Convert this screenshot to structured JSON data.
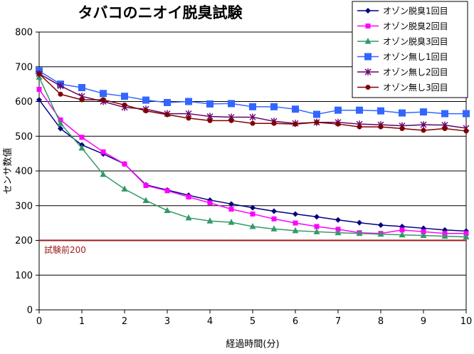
{
  "chart_data": {
    "type": "line",
    "title": "タバコのニオイ脱臭試験",
    "xlabel": "経過時間(分)",
    "ylabel": "センサ数値",
    "xlim": [
      0,
      10
    ],
    "ylim": [
      0,
      800
    ],
    "x_ticks": [
      0,
      1,
      2,
      3,
      4,
      5,
      6,
      7,
      8,
      9,
      10
    ],
    "y_ticks": [
      0,
      100,
      200,
      300,
      400,
      500,
      600,
      700,
      800
    ],
    "grid": "horizontal",
    "legend_position": "top-right",
    "x": [
      0,
      0.5,
      1,
      1.5,
      2,
      2.5,
      3,
      3.5,
      4,
      4.5,
      5,
      5.5,
      6,
      6.5,
      7,
      7.5,
      8,
      8.5,
      9,
      9.5,
      10
    ],
    "series": [
      {
        "name": "オゾン脱臭1回目",
        "color": "#000080",
        "marker": "diamond",
        "values": [
          605,
          522,
          475,
          449,
          420,
          360,
          345,
          330,
          316,
          305,
          294,
          284,
          276,
          268,
          259,
          251,
          244,
          240,
          235,
          230,
          227
        ]
      },
      {
        "name": "オゾン脱臭2回目",
        "color": "#ff00ff",
        "marker": "square",
        "values": [
          635,
          547,
          497,
          455,
          420,
          358,
          343,
          325,
          308,
          290,
          276,
          262,
          250,
          240,
          232,
          222,
          220,
          230,
          225,
          220,
          220
        ]
      },
      {
        "name": "オゾン脱臭3回目",
        "color": "#339966",
        "marker": "triangle",
        "values": [
          670,
          537,
          466,
          390,
          348,
          315,
          286,
          265,
          256,
          252,
          240,
          233,
          228,
          225,
          222,
          220,
          218,
          216,
          214,
          212,
          210
        ]
      },
      {
        "name": "オゾン無し1回目",
        "color": "#3366ff",
        "marker": "bigsquare",
        "values": [
          688,
          650,
          640,
          623,
          615,
          604,
          597,
          600,
          593,
          594,
          585,
          585,
          578,
          563,
          575,
          575,
          573,
          567,
          570,
          565,
          565
        ]
      },
      {
        "name": "オゾン無し2回目",
        "color": "#660066",
        "marker": "star",
        "values": [
          680,
          645,
          615,
          600,
          583,
          578,
          565,
          565,
          557,
          555,
          555,
          543,
          537,
          540,
          540,
          535,
          533,
          530,
          533,
          532,
          523
        ]
      },
      {
        "name": "オゾン無し3回目",
        "color": "#800000",
        "marker": "circle",
        "values": [
          680,
          621,
          605,
          605,
          590,
          573,
          562,
          552,
          545,
          545,
          537,
          537,
          535,
          540,
          535,
          527,
          527,
          522,
          517,
          522,
          515
        ]
      }
    ],
    "reference_line": {
      "value": 200,
      "label": "試験前200",
      "color": "#9b1c1c"
    }
  }
}
